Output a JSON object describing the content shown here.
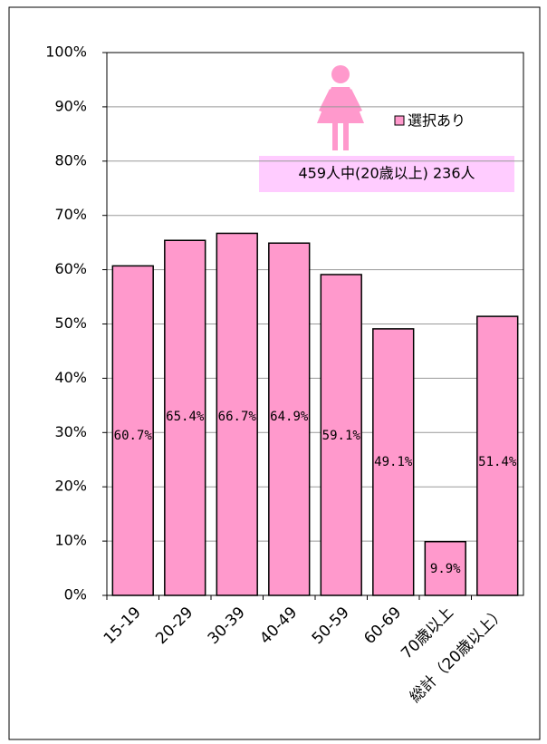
{
  "chart_data": {
    "type": "bar",
    "categories": [
      "15-19",
      "20-29",
      "30-39",
      "40-49",
      "50-59",
      "60-69",
      "70歳以上",
      "総計（20歳以上）"
    ],
    "series": [
      {
        "name": "選択あり",
        "color": "#ff99cc",
        "values": [
          60.7,
          65.4,
          66.7,
          64.9,
          59.1,
          49.1,
          9.9,
          51.4
        ],
        "value_labels": [
          "60.7%",
          "65.4%",
          "66.7%",
          "64.9%",
          "59.1%",
          "49.1%",
          "9.9%",
          "51.4%"
        ]
      }
    ],
    "annotation": "459人中(20歳以上) 236人",
    "ylim": [
      0,
      100
    ],
    "yticks": [
      {
        "value": 0,
        "label": "0%"
      },
      {
        "value": 10,
        "label": "10%"
      },
      {
        "value": 20,
        "label": "20%"
      },
      {
        "value": 30,
        "label": "30%"
      },
      {
        "value": 40,
        "label": "40%"
      },
      {
        "value": 50,
        "label": "50%"
      },
      {
        "value": 60,
        "label": "60%"
      },
      {
        "value": 70,
        "label": "70%"
      },
      {
        "value": 80,
        "label": "80%"
      },
      {
        "value": 90,
        "label": "90%"
      },
      {
        "value": 100,
        "label": "100%"
      }
    ],
    "grid": true
  }
}
